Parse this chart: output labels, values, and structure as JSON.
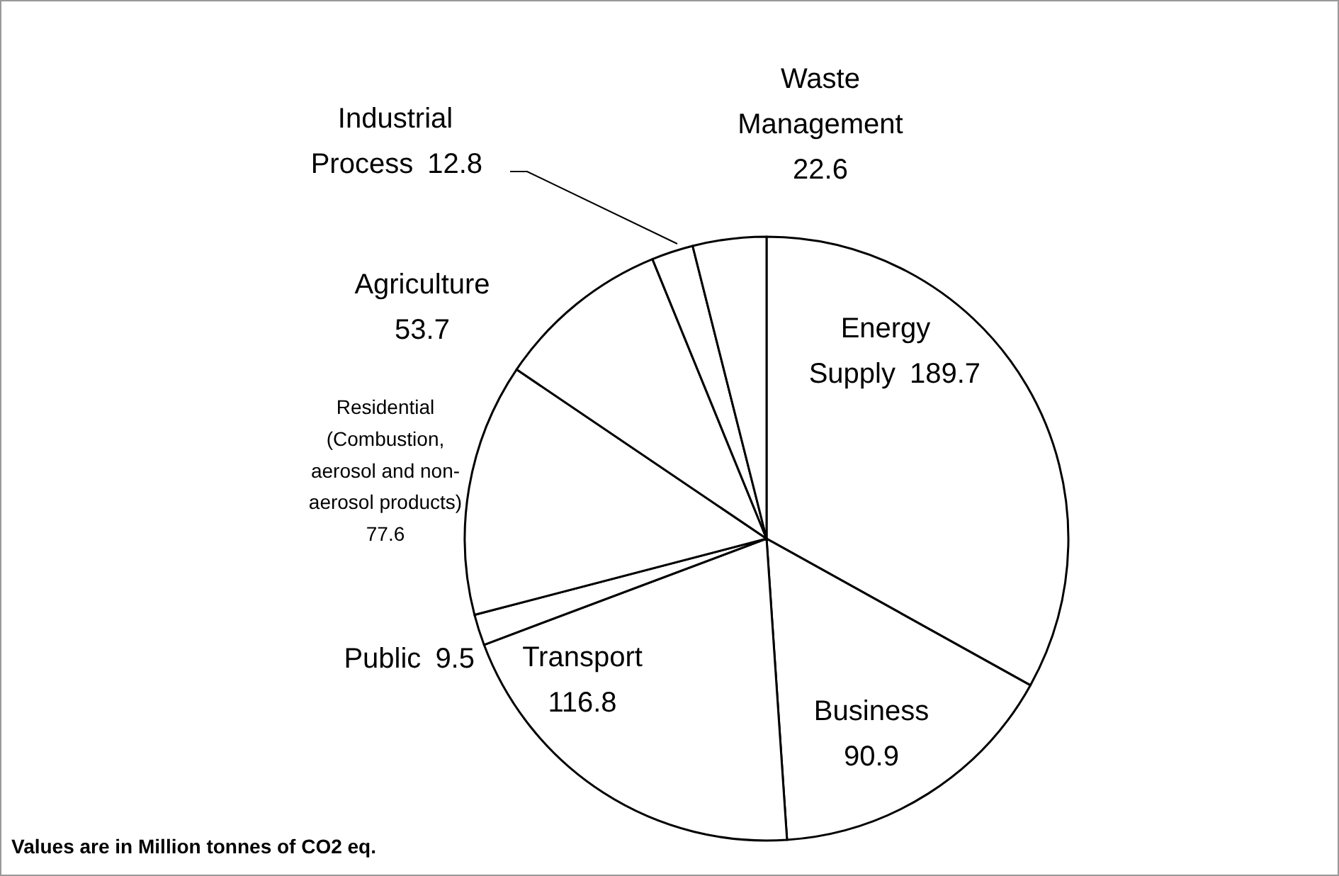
{
  "chart_data": {
    "type": "pie",
    "categories": [
      "Energy\nSupply",
      "Business",
      "Transport",
      "Public",
      "Residential\n(Combustion,\naerosol and non-\naerosol products)",
      "Agriculture",
      "Industrial\nProcess",
      "Waste\nManagement"
    ],
    "values": [
      189.7,
      90.9,
      116.8,
      9.5,
      77.6,
      53.7,
      12.8,
      22.6
    ],
    "colors": [
      "#ffffff",
      "#ffffff",
      "#ffffff",
      "#ffffff",
      "#ffffff",
      "#ffffff",
      "#ffffff",
      "#ffffff"
    ],
    "data_labels": true,
    "annotations": [
      "Values are in Million tonnes of CO2 eq."
    ]
  }
}
